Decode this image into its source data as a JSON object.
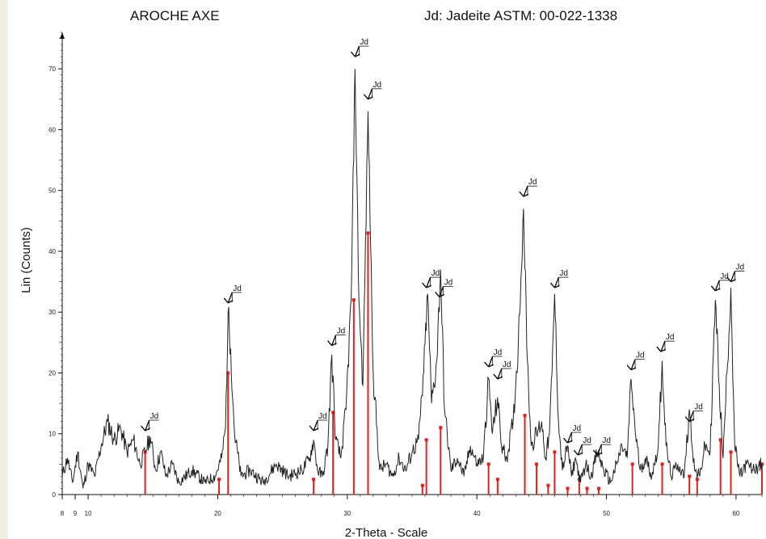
{
  "chart_data": {
    "type": "line",
    "title": "AROCHE AXE",
    "subtitle": "Jd: Jadeite  ASTM: 00-022-1338",
    "xlabel": "2-Theta - Scale",
    "ylabel": "Lin (Counts)",
    "xlim": [
      8,
      62
    ],
    "ylim": [
      0,
      76
    ],
    "x_ticks": [
      8,
      9,
      10,
      20,
      30,
      40,
      50,
      60
    ],
    "y_ticks": [
      0,
      10,
      20,
      30,
      40,
      50,
      60,
      70
    ],
    "grid": false,
    "series": [
      {
        "name": "",
        "color": "#222222",
        "x": [
          8.0,
          8.4,
          8.8,
          9.2,
          9.6,
          10.0,
          10.5,
          11.0,
          11.5,
          12.0,
          12.5,
          13.0,
          13.5,
          14.0,
          14.4,
          14.8,
          15.2,
          15.6,
          16.0,
          16.5,
          17.0,
          18.0,
          19.0,
          19.8,
          20.3,
          20.6,
          20.8,
          21.0,
          21.3,
          21.8,
          22.5,
          23.5,
          24.5,
          25.5,
          26.5,
          27.1,
          27.4,
          27.7,
          28.1,
          28.5,
          28.8,
          29.1,
          29.5,
          29.9,
          30.3,
          30.6,
          30.9,
          31.2,
          31.6,
          32.0,
          32.5,
          33.0,
          33.5,
          34.0,
          34.5,
          35.0,
          35.5,
          35.9,
          36.2,
          36.5,
          36.9,
          37.2,
          37.5,
          38.0,
          38.5,
          39.0,
          39.5,
          40.0,
          40.5,
          40.9,
          41.2,
          41.6,
          41.9,
          42.3,
          42.8,
          43.2,
          43.6,
          43.9,
          44.2,
          44.6,
          45.0,
          45.3,
          45.6,
          45.8,
          46.0,
          46.3,
          46.6,
          47.0,
          47.3,
          47.6,
          48.0,
          48.4,
          48.8,
          49.3,
          49.8,
          50.3,
          50.8,
          51.2,
          51.6,
          51.9,
          52.2,
          52.6,
          53.0,
          53.5,
          54.0,
          54.3,
          54.6,
          55.0,
          55.5,
          56.0,
          56.4,
          56.8,
          57.2,
          57.6,
          58.0,
          58.4,
          58.7,
          59.0,
          59.3,
          59.6,
          59.9,
          60.3,
          60.8,
          61.3,
          62.0
        ],
        "values": [
          3,
          6,
          2,
          7,
          1,
          5,
          3,
          8,
          12,
          9,
          11,
          7,
          9,
          5,
          7,
          9.5,
          4,
          7,
          3,
          5,
          2,
          4,
          2,
          3,
          6,
          11,
          30,
          24,
          10,
          3,
          4,
          2,
          5,
          3,
          4,
          6,
          9,
          4,
          3,
          8,
          23,
          9,
          6,
          14,
          32,
          70,
          32,
          18,
          63,
          20,
          4,
          5,
          3,
          6,
          4,
          7,
          9,
          20,
          33,
          15,
          22,
          37,
          14,
          4,
          6,
          3,
          8,
          5,
          6,
          19,
          10,
          16,
          8,
          6,
          12,
          25,
          47,
          22,
          8,
          10,
          12,
          6,
          10,
          20,
          33,
          12,
          4,
          8,
          3,
          6,
          2,
          5,
          3,
          7,
          4,
          2,
          5,
          8,
          6,
          19,
          11,
          4,
          6,
          3,
          8,
          22,
          8,
          3,
          5,
          3,
          14,
          4,
          3,
          8,
          7,
          32,
          18,
          6,
          20,
          34,
          8,
          3,
          5,
          4,
          5
        ]
      }
    ],
    "reference_sticks": {
      "name": "",
      "color": "#dd2222",
      "x": [
        14.4,
        20.1,
        20.8,
        27.4,
        28.9,
        30.5,
        31.6,
        35.8,
        36.1,
        37.2,
        40.9,
        41.6,
        43.7,
        44.6,
        45.5,
        46.0,
        47.0,
        47.9,
        48.5,
        49.4,
        52.0,
        54.3,
        56.4,
        57.0,
        58.8,
        59.6,
        62.0
      ],
      "values": [
        7,
        2.5,
        20,
        2.5,
        13.5,
        32,
        43,
        1.5,
        9,
        11,
        5,
        2.5,
        13,
        5,
        1.5,
        7,
        1,
        2.5,
        1,
        1,
        5,
        5,
        3,
        2.5,
        9,
        7,
        5
      ]
    },
    "peak_markers": {
      "label": "Jd",
      "x": [
        14.4,
        20.8,
        27.4,
        28.8,
        30.6,
        31.6,
        36.1,
        37.1,
        40.9,
        41.6,
        43.6,
        46.0,
        47.0,
        47.8,
        49.3,
        51.9,
        54.2,
        56.4,
        58.4,
        59.6
      ],
      "values": [
        10.5,
        31.5,
        10.5,
        24.5,
        72,
        65,
        34,
        32.5,
        21,
        19,
        49,
        34,
        8.5,
        6.5,
        6.5,
        20.5,
        23.5,
        12,
        33.5,
        35
      ]
    }
  }
}
